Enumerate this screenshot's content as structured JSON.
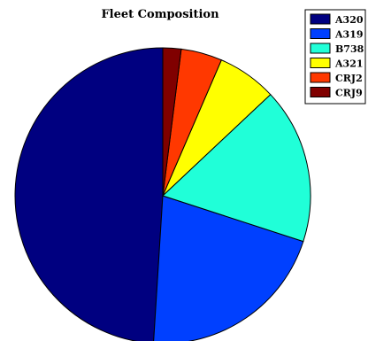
{
  "chart_data": {
    "type": "pie",
    "title": "Fleet Composition",
    "legend_position": "top-right",
    "start_angle_deg": -90,
    "direction": "counterclockwise",
    "slices": [
      {
        "label": "A320",
        "value": 49.0,
        "color": "#000080"
      },
      {
        "label": "A319",
        "value": 21.0,
        "color": "#0040ff"
      },
      {
        "label": "B738",
        "value": 17.0,
        "color": "#20ffd8"
      },
      {
        "label": "A321",
        "value": 6.5,
        "color": "#ffff00"
      },
      {
        "label": "CRJ2",
        "value": 4.5,
        "color": "#ff3800"
      },
      {
        "label": "CRJ9",
        "value": 2.0,
        "color": "#800000"
      }
    ]
  }
}
